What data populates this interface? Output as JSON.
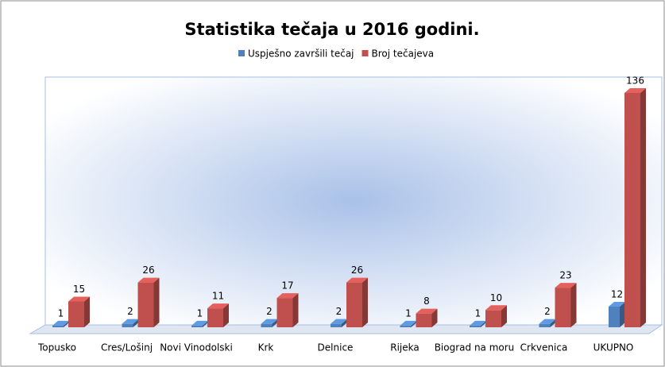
{
  "chart_data": {
    "type": "bar3d",
    "title": "Statistika tečaja u 2016 godini.",
    "categories": [
      "Topusko",
      "Cres/Lošinj",
      "Novi Vinodolski",
      "Krk",
      "Delnice",
      "Rijeka",
      "Biograd na moru",
      "Crkvenica",
      "UKUPNO"
    ],
    "series": [
      {
        "name": "Uspješno završili tečaj",
        "color": "#4f81bd",
        "values": [
          1,
          2,
          1,
          2,
          2,
          1,
          1,
          2,
          12
        ]
      },
      {
        "name": "Broj tečajeva",
        "color": "#c0504d",
        "values": [
          15,
          26,
          11,
          17,
          26,
          8,
          10,
          23,
          136
        ]
      }
    ]
  }
}
